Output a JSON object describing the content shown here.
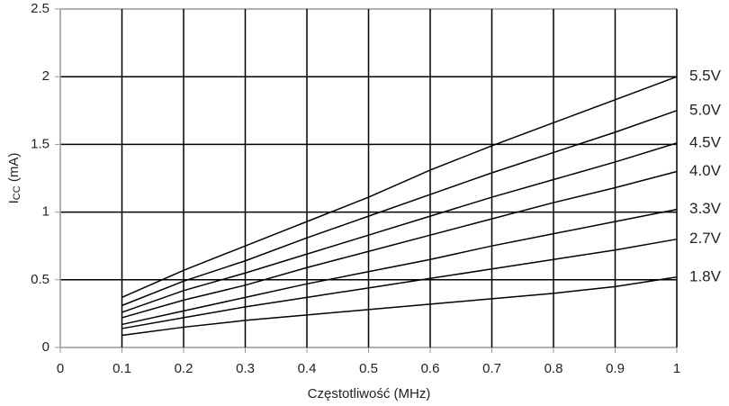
{
  "chart_data": {
    "type": "line",
    "ylabel": [
      "I",
      "CC",
      " (mA)"
    ],
    "xlabel": "Częstotliwość (MHz)",
    "x": [
      0.1,
      0.2,
      0.3,
      0.4,
      0.5,
      0.6,
      0.7,
      0.8,
      0.9,
      1
    ],
    "series": [
      {
        "name": "5.5V",
        "color": "#000000",
        "values": [
          0.37,
          0.57,
          0.75,
          0.93,
          1.11,
          1.31,
          1.49,
          1.66,
          1.83,
          2.0
        ]
      },
      {
        "name": "5.0V",
        "color": "#000000",
        "values": [
          0.31,
          0.49,
          0.64,
          0.81,
          0.97,
          1.13,
          1.29,
          1.44,
          1.59,
          1.75
        ]
      },
      {
        "name": "4.5V",
        "color": "#000000",
        "values": [
          0.26,
          0.42,
          0.55,
          0.69,
          0.83,
          0.97,
          1.11,
          1.24,
          1.37,
          1.51
        ]
      },
      {
        "name": "4.0V",
        "color": "#000000",
        "values": [
          0.22,
          0.35,
          0.46,
          0.59,
          0.71,
          0.83,
          0.95,
          1.07,
          1.18,
          1.3
        ]
      },
      {
        "name": "3.3V",
        "color": "#000000",
        "values": [
          0.17,
          0.27,
          0.37,
          0.47,
          0.56,
          0.65,
          0.75,
          0.84,
          0.93,
          1.02
        ]
      },
      {
        "name": "2.7V",
        "color": "#000000",
        "values": [
          0.14,
          0.22,
          0.3,
          0.37,
          0.44,
          0.51,
          0.58,
          0.65,
          0.72,
          0.8
        ]
      },
      {
        "name": "1.8V",
        "color": "#000000",
        "values": [
          0.09,
          0.15,
          0.2,
          0.24,
          0.28,
          0.32,
          0.36,
          0.4,
          0.45,
          0.52
        ]
      }
    ],
    "xlim": [
      0,
      1
    ],
    "xticks": [
      0,
      0.1,
      0.2,
      0.3,
      0.4,
      0.5,
      0.6,
      0.7,
      0.8,
      0.9,
      1
    ],
    "ylim": [
      0,
      2.5
    ],
    "yticks": [
      0,
      0.5,
      1,
      1.5,
      2,
      2.5
    ],
    "grid": true
  }
}
